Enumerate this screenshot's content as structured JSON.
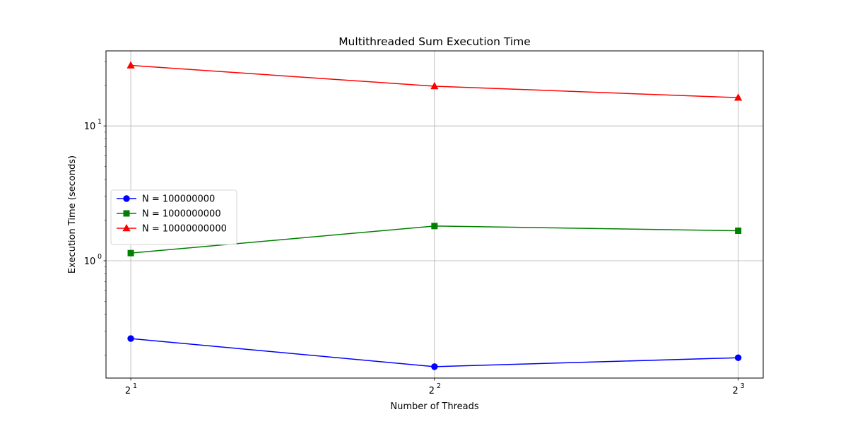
{
  "chart_data": {
    "type": "line",
    "title": "Multithreaded Sum Execution Time",
    "xlabel": "Number of Threads",
    "ylabel": "Execution Time (seconds)",
    "x_scale": "log2",
    "y_scale": "log10",
    "x": [
      2,
      4,
      8
    ],
    "x_tick_labels": [
      {
        "base": "2",
        "exp": "1"
      },
      {
        "base": "2",
        "exp": "2"
      },
      {
        "base": "2",
        "exp": "3"
      }
    ],
    "y_tick_labels": [
      {
        "base": "10",
        "exp": "0",
        "value": 1
      },
      {
        "base": "10",
        "exp": "1",
        "value": 10
      }
    ],
    "xlim": [
      1.89,
      8.47
    ],
    "ylim": [
      0.135,
      36.0
    ],
    "grid": true,
    "legend_position": "center-left",
    "series": [
      {
        "name": "N = 100000000",
        "values": [
          0.265,
          0.164,
          0.191
        ],
        "color": "#0000ff",
        "marker": "circle"
      },
      {
        "name": "N = 1000000000",
        "values": [
          1.14,
          1.81,
          1.67
        ],
        "color": "#008000",
        "marker": "square"
      },
      {
        "name": "N = 10000000000",
        "values": [
          28.1,
          19.7,
          16.2
        ],
        "color": "#ff0000",
        "marker": "triangle"
      }
    ]
  }
}
